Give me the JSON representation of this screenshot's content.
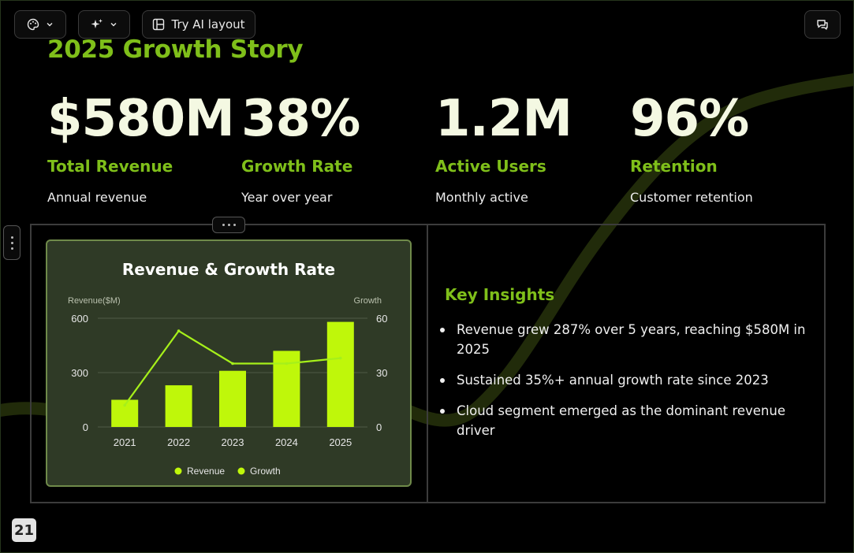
{
  "toolbar": {
    "theme_icon": "palette-icon",
    "ai_icon": "sparkle-icon",
    "layout_icon": "layout-icon",
    "try_ai_label": "Try AI layout",
    "comment_icon": "comment-icon"
  },
  "slide": {
    "title": "2025 Growth Story",
    "stats": [
      {
        "value": "$580M",
        "label": "Total Revenue",
        "sub": "Annual revenue"
      },
      {
        "value": "38%",
        "label": "Growth Rate",
        "sub": "Year over year"
      },
      {
        "value": "1.2M",
        "label": "Active Users",
        "sub": "Monthly active"
      },
      {
        "value": "96%",
        "label": "Retention",
        "sub": "Customer retention"
      }
    ],
    "insights": {
      "title": "Key Insights",
      "items": [
        "Revenue grew 287% over 5 years, reaching $580M in 2025",
        "Sustained 35%+ annual growth rate since 2023",
        "Cloud segment emerged as the dominant revenue driver"
      ]
    },
    "page_number": "21"
  },
  "colors": {
    "accent": "#7fbf1a",
    "bar": "#bff70a",
    "background": "#000000",
    "card": "#2f3a26"
  },
  "chart_data": {
    "type": "bar",
    "title": "Revenue & Growth Rate",
    "categories": [
      "2021",
      "2022",
      "2023",
      "2024",
      "2025"
    ],
    "y_left_label": "Revenue($M)",
    "y_right_label": "Growth",
    "y_left_ticks": [
      "600",
      "300",
      "0"
    ],
    "y_right_ticks": [
      "60",
      "30",
      "0"
    ],
    "ylim_left": [
      0,
      600
    ],
    "ylim_right": [
      0,
      60
    ],
    "grid": true,
    "legend_position": "bottom",
    "series": [
      {
        "name": "Revenue",
        "type": "bar",
        "axis": "left",
        "values": [
          150,
          230,
          310,
          420,
          580
        ]
      },
      {
        "name": "Growth",
        "type": "line",
        "axis": "right",
        "values": [
          12,
          53,
          35,
          35,
          38
        ]
      }
    ]
  }
}
